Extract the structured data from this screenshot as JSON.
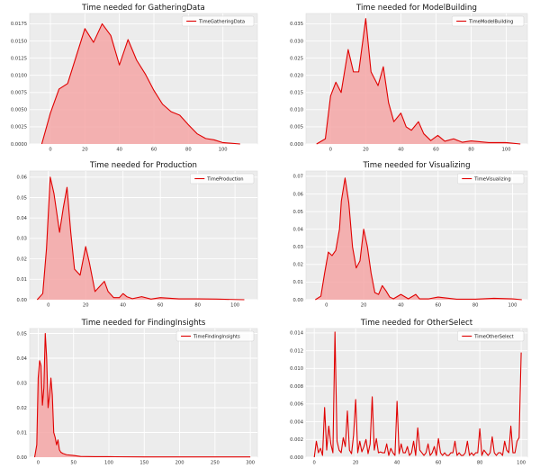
{
  "figure": {
    "style": "ggplot-like gray panels, white grid",
    "line_color": "#e00000",
    "fill_color": "#f4a6a6",
    "panel_bg": "#ececec",
    "grid": true,
    "legend_position": "top-right"
  },
  "chart_data": [
    {
      "type": "area",
      "title": "Time needed for GatheringData",
      "xlabel": "",
      "ylabel": "",
      "series": [
        {
          "name": "TimeGatheringData",
          "x": [
            -5,
            0,
            5,
            10,
            15,
            20,
            25,
            30,
            35,
            40,
            45,
            50,
            55,
            60,
            65,
            70,
            75,
            80,
            85,
            90,
            95,
            100,
            110
          ],
          "y": [
            0,
            0.0045,
            0.008,
            0.0088,
            0.0128,
            0.0168,
            0.0148,
            0.0175,
            0.0158,
            0.0115,
            0.0152,
            0.0122,
            0.0102,
            0.0078,
            0.0058,
            0.0047,
            0.0042,
            0.0028,
            0.0015,
            0.0008,
            0.0006,
            0.0002,
            0
          ]
        }
      ],
      "xlim": [
        -12,
        120
      ],
      "ylim": [
        0,
        0.019
      ],
      "xticks": [
        0,
        20,
        40,
        60,
        80,
        100
      ],
      "xtick_labels": [
        "0",
        "20",
        "40",
        "60",
        "80",
        "100"
      ],
      "yticks": [
        0,
        0.0025,
        0.005,
        0.0075,
        0.01,
        0.0125,
        0.015,
        0.0175
      ],
      "ytick_labels": [
        "0.0000",
        "0.0025",
        "0.0050",
        "0.0075",
        "0.0100",
        "0.0125",
        "0.0150",
        "0.0175"
      ]
    },
    {
      "type": "area",
      "title": "Time needed for ModelBuilding",
      "xlabel": "",
      "ylabel": "",
      "series": [
        {
          "name": "TimeModelBuilding",
          "x": [
            -8,
            -3,
            0,
            3,
            6,
            10,
            13,
            16,
            20,
            23,
            27,
            30,
            33,
            36,
            40,
            43,
            46,
            50,
            53,
            57,
            61,
            65,
            70,
            75,
            80,
            90,
            100,
            108
          ],
          "y": [
            0,
            0.0015,
            0.014,
            0.018,
            0.015,
            0.0275,
            0.021,
            0.021,
            0.0365,
            0.021,
            0.017,
            0.0225,
            0.012,
            0.0065,
            0.009,
            0.005,
            0.004,
            0.0065,
            0.003,
            0.001,
            0.0025,
            0.0008,
            0.0015,
            0.0005,
            0.0009,
            0.0004,
            0.0004,
            0
          ]
        }
      ],
      "xlim": [
        -14,
        112
      ],
      "ylim": [
        0,
        0.038
      ],
      "xticks": [
        0,
        20,
        40,
        60,
        80,
        100
      ],
      "xtick_labels": [
        "0",
        "20",
        "40",
        "60",
        "80",
        "100"
      ],
      "yticks": [
        0,
        0.005,
        0.01,
        0.015,
        0.02,
        0.025,
        0.03,
        0.035
      ],
      "ytick_labels": [
        "0.000",
        "0.005",
        "0.010",
        "0.015",
        "0.020",
        "0.025",
        "0.030",
        "0.035"
      ]
    },
    {
      "type": "area",
      "title": "Time needed for Production",
      "xlabel": "",
      "ylabel": "",
      "series": [
        {
          "name": "TimeProduction",
          "x": [
            -6,
            -3,
            -1,
            1,
            3,
            6,
            8,
            10,
            12,
            14,
            17,
            20,
            22,
            25,
            28,
            30,
            32,
            35,
            38,
            40,
            42,
            45,
            50,
            55,
            60,
            70,
            80,
            90,
            105
          ],
          "y": [
            0,
            0.003,
            0.025,
            0.06,
            0.052,
            0.033,
            0.045,
            0.055,
            0.033,
            0.015,
            0.012,
            0.026,
            0.018,
            0.004,
            0.007,
            0.009,
            0.004,
            0.001,
            0.001,
            0.003,
            0.0015,
            0.0005,
            0.0015,
            0.0003,
            0.001,
            0.0004,
            0.0004,
            0.0003,
            0
          ]
        }
      ],
      "xlim": [
        -10,
        112
      ],
      "ylim": [
        0,
        0.063
      ],
      "xticks": [
        0,
        20,
        40,
        60,
        80,
        100
      ],
      "xtick_labels": [
        "0",
        "20",
        "40",
        "60",
        "80",
        "100"
      ],
      "yticks": [
        0,
        0.01,
        0.02,
        0.03,
        0.04,
        0.05,
        0.06
      ],
      "ytick_labels": [
        "0.00",
        "0.01",
        "0.02",
        "0.03",
        "0.04",
        "0.05",
        "0.06"
      ]
    },
    {
      "type": "area",
      "title": "Time needed for Visualizing",
      "xlabel": "",
      "ylabel": "",
      "series": [
        {
          "name": "TimeVisualizing",
          "x": [
            -6,
            -3,
            -1,
            1,
            3,
            5,
            7,
            8,
            10,
            12,
            14,
            16,
            18,
            20,
            22,
            24,
            26,
            28,
            30,
            32,
            34,
            36,
            40,
            44,
            48,
            50,
            55,
            60,
            70,
            80,
            90,
            100,
            105
          ],
          "y": [
            0,
            0.002,
            0.015,
            0.027,
            0.025,
            0.028,
            0.04,
            0.056,
            0.069,
            0.055,
            0.03,
            0.018,
            0.022,
            0.04,
            0.03,
            0.015,
            0.004,
            0.003,
            0.008,
            0.005,
            0.0015,
            0.0005,
            0.003,
            0.0005,
            0.003,
            0.0005,
            0.0005,
            0.0015,
            0.0003,
            0.0003,
            0.0008,
            0.0005,
            0
          ]
        }
      ],
      "xlim": [
        -11,
        108
      ],
      "ylim": [
        0,
        0.073
      ],
      "xticks": [
        0,
        20,
        40,
        60,
        80,
        100
      ],
      "xtick_labels": [
        "0",
        "20",
        "40",
        "60",
        "80",
        "100"
      ],
      "yticks": [
        0,
        0.01,
        0.02,
        0.03,
        0.04,
        0.05,
        0.06,
        0.07
      ],
      "ytick_labels": [
        "0.00",
        "0.01",
        "0.02",
        "0.03",
        "0.04",
        "0.05",
        "0.06",
        "0.07"
      ]
    },
    {
      "type": "area",
      "title": "Time needed for FindingInsights",
      "xlabel": "",
      "ylabel": "",
      "series": [
        {
          "name": "TimeFindingInsights",
          "x": [
            -5,
            -2,
            0,
            2,
            4,
            6,
            8,
            10,
            12,
            14,
            16,
            18,
            20,
            22,
            24,
            26,
            28,
            30,
            32,
            35,
            40,
            50,
            60,
            80,
            100,
            150,
            200,
            300
          ],
          "y": [
            0,
            0.005,
            0.032,
            0.039,
            0.037,
            0.021,
            0.028,
            0.05,
            0.04,
            0.02,
            0.025,
            0.032,
            0.025,
            0.01,
            0.008,
            0.005,
            0.007,
            0.003,
            0.002,
            0.0015,
            0.001,
            0.0007,
            0.0003,
            0.0002,
            0.0002,
            0.0001,
            0.0001,
            0.0001
          ]
        }
      ],
      "xlim": [
        -12,
        310
      ],
      "ylim": [
        0,
        0.052
      ],
      "xticks": [
        0,
        50,
        100,
        150,
        200,
        250,
        300
      ],
      "xtick_labels": [
        "0",
        "50",
        "100",
        "150",
        "200",
        "250",
        "300"
      ],
      "yticks": [
        0,
        0.01,
        0.02,
        0.03,
        0.04,
        0.05
      ],
      "ytick_labels": [
        "0.00",
        "0.01",
        "0.02",
        "0.03",
        "0.04",
        "0.05"
      ]
    },
    {
      "type": "line",
      "title": "Time needed for OtherSelect",
      "xlabel": "",
      "ylabel": "",
      "series": [
        {
          "name": "TimeOtherSelect",
          "x": [
            0,
            1,
            2,
            3,
            4,
            5,
            6,
            7,
            8,
            9,
            10,
            11,
            12,
            13,
            14,
            15,
            16,
            17,
            18,
            19,
            20,
            21,
            22,
            23,
            24,
            25,
            26,
            27,
            28,
            29,
            30,
            31,
            32,
            33,
            34,
            35,
            36,
            37,
            38,
            39,
            40,
            41,
            42,
            43,
            44,
            45,
            46,
            47,
            48,
            49,
            50,
            51,
            52,
            53,
            54,
            55,
            56,
            57,
            58,
            59,
            60,
            61,
            62,
            63,
            64,
            65,
            66,
            67,
            68,
            69,
            70,
            71,
            72,
            73,
            74,
            75,
            76,
            77,
            78,
            79,
            80,
            81,
            82,
            83,
            84,
            85,
            86,
            87,
            88,
            89,
            90,
            91,
            92,
            93,
            94,
            95,
            96,
            97,
            98,
            99,
            100
          ],
          "y": [
            0,
            0.0018,
            0.0005,
            0.001,
            0.0002,
            0.0056,
            0.0008,
            0.0035,
            0.0015,
            0.0005,
            0.0141,
            0.0018,
            0.0008,
            0.0005,
            0.0022,
            0.0012,
            0.0052,
            0.0008,
            0.0004,
            0.0025,
            0.0065,
            0.0005,
            0.0018,
            0.0006,
            0.0012,
            0.002,
            0.0004,
            0.0015,
            0.0068,
            0.0008,
            0.0021,
            0.0005,
            0.0006,
            0.0005,
            0.0005,
            0.0015,
            0.0002,
            0.001,
            0.0005,
            0.0002,
            0.0063,
            0.0004,
            0.0015,
            0.0005,
            0.0005,
            0.0012,
            0.0002,
            0.0005,
            0.0018,
            0.0002,
            0.0033,
            0.0008,
            0.0005,
            0.0002,
            0.0005,
            0.0015,
            0.0002,
            0.0005,
            0.0012,
            0.0002,
            0.0021,
            0.0005,
            0.0002,
            0.0005,
            0.0002,
            0.0002,
            0.0005,
            0.0005,
            0.0018,
            0.0002,
            0.0005,
            0.0002,
            0.0002,
            0.0005,
            0.0018,
            0.0002,
            0.0005,
            0.0002,
            0.0005,
            0.0005,
            0.0032,
            0.0002,
            0.0008,
            0.0005,
            0.0002,
            0.0005,
            0.0023,
            0.0005,
            0.0002,
            0.0005,
            0.0005,
            0.0002,
            0.0018,
            0.0008,
            0.0005,
            0.0035,
            0.0005,
            0.0005,
            0.0018,
            0.0022,
            0.0118
          ]
        }
      ],
      "xlim": [
        -4,
        103
      ],
      "ylim": [
        0,
        0.0145
      ],
      "xticks": [
        0,
        20,
        40,
        60,
        80,
        100
      ],
      "xtick_labels": [
        "0",
        "20",
        "40",
        "60",
        "80",
        "100"
      ],
      "yticks": [
        0,
        0.002,
        0.004,
        0.006,
        0.008,
        0.01,
        0.012,
        0.014
      ],
      "ytick_labels": [
        "0.000",
        "0.002",
        "0.004",
        "0.006",
        "0.008",
        "0.010",
        "0.012",
        "0.014"
      ]
    }
  ]
}
